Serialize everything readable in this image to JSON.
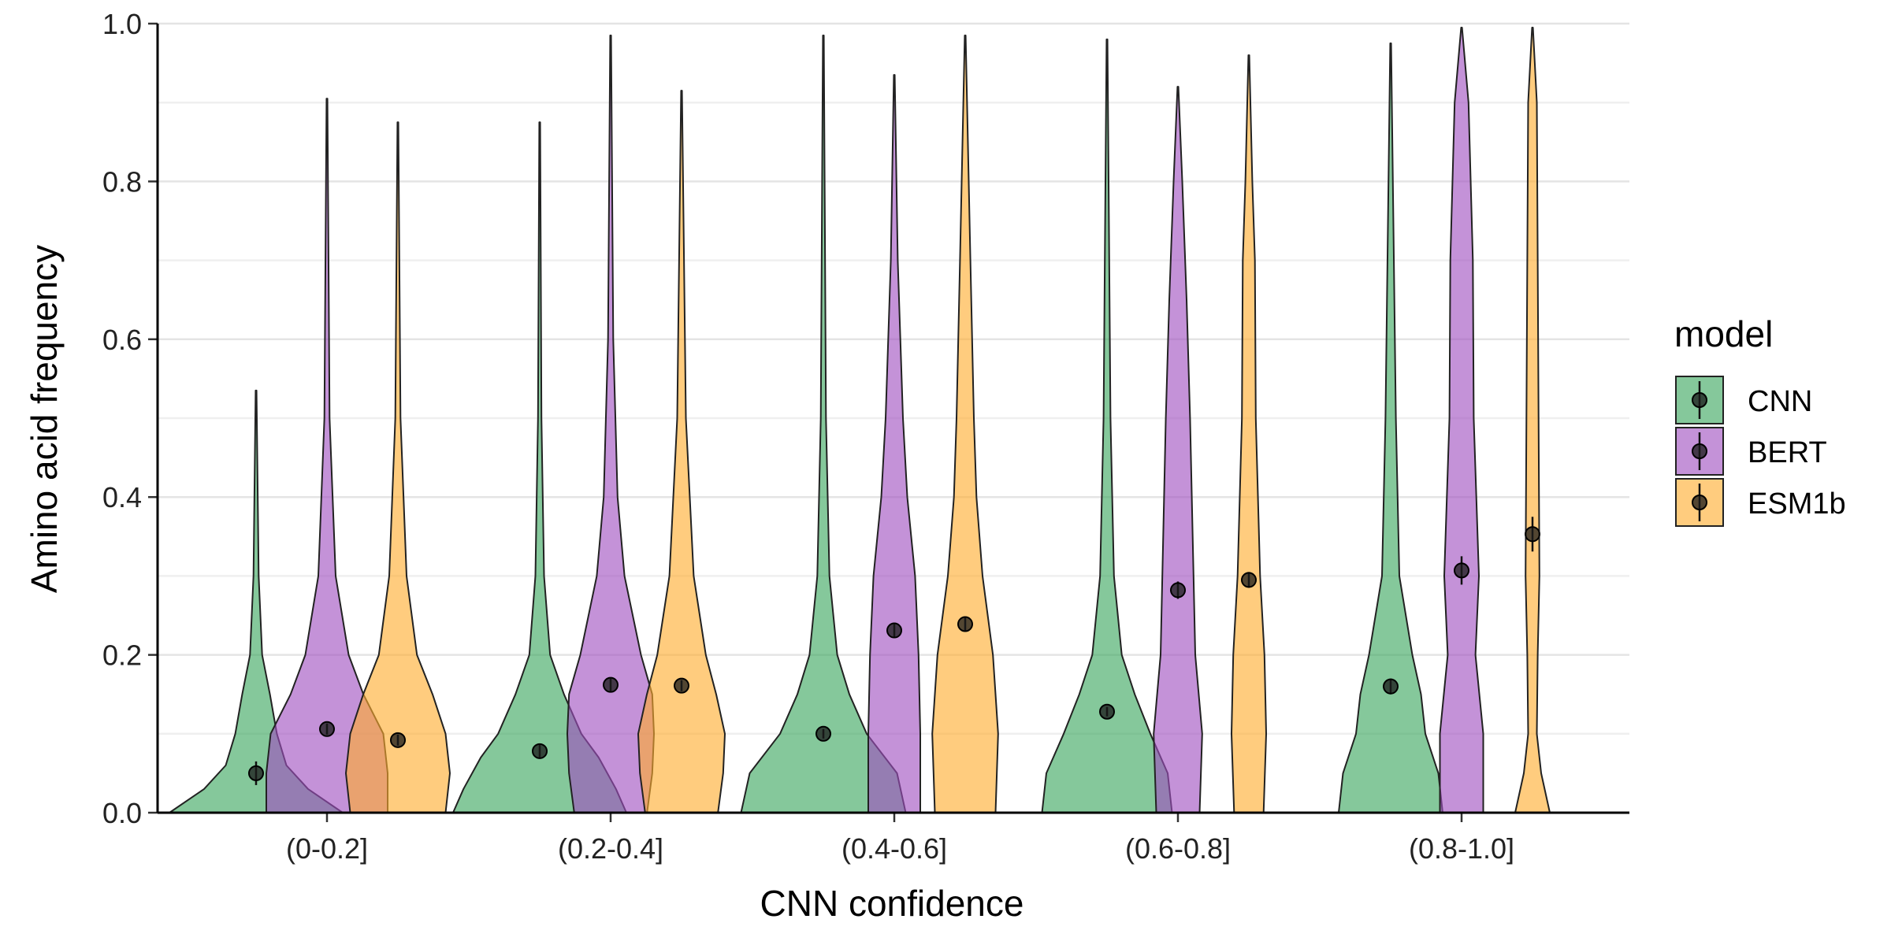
{
  "chart_data": {
    "type": "violin",
    "xlabel": "CNN confidence",
    "ylabel": "Amino acid frequency",
    "ylim": [
      0,
      1
    ],
    "yticks": [
      "0.0",
      "0.2",
      "0.4",
      "0.6",
      "0.8",
      "1.0"
    ],
    "grid": true,
    "legend": {
      "title": "model",
      "position": "right"
    },
    "categories": [
      "(0-0.2]",
      "(0.2-0.4]",
      "(0.4-0.6]",
      "(0.6-0.8]",
      "(0.8-1.0]"
    ],
    "series": [
      {
        "name": "CNN",
        "color": "#3aa75e",
        "means": [
          0.05,
          0.078,
          0.1,
          0.128,
          0.16
        ],
        "errors": [
          0.015,
          0.008,
          0.006,
          0.006,
          0.01
        ],
        "max": [
          0.535,
          0.875,
          0.985,
          0.98,
          0.975
        ],
        "widths": [
          [
            [
              0,
              1
            ],
            [
              0.03,
              0.6
            ],
            [
              0.06,
              0.35
            ],
            [
              0.1,
              0.24
            ],
            [
              0.15,
              0.16
            ],
            [
              0.2,
              0.07
            ],
            [
              0.3,
              0.03
            ],
            [
              0.535,
              0.005
            ]
          ],
          [
            [
              0,
              1
            ],
            [
              0.03,
              0.88
            ],
            [
              0.07,
              0.68
            ],
            [
              0.1,
              0.48
            ],
            [
              0.15,
              0.28
            ],
            [
              0.2,
              0.12
            ],
            [
              0.3,
              0.05
            ],
            [
              0.5,
              0.02
            ],
            [
              0.875,
              0.005
            ]
          ],
          [
            [
              0,
              0.95
            ],
            [
              0.05,
              0.85
            ],
            [
              0.1,
              0.5
            ],
            [
              0.15,
              0.3
            ],
            [
              0.2,
              0.16
            ],
            [
              0.3,
              0.07
            ],
            [
              0.5,
              0.03
            ],
            [
              0.985,
              0.005
            ]
          ],
          [
            [
              0,
              0.75
            ],
            [
              0.05,
              0.7
            ],
            [
              0.1,
              0.5
            ],
            [
              0.15,
              0.32
            ],
            [
              0.2,
              0.17
            ],
            [
              0.3,
              0.08
            ],
            [
              0.5,
              0.04
            ],
            [
              0.98,
              0.005
            ]
          ],
          [
            [
              0,
              0.6
            ],
            [
              0.05,
              0.55
            ],
            [
              0.1,
              0.4
            ],
            [
              0.15,
              0.35
            ],
            [
              0.2,
              0.25
            ],
            [
              0.3,
              0.1
            ],
            [
              0.5,
              0.06
            ],
            [
              0.975,
              0.005
            ]
          ]
        ]
      },
      {
        "name": "BERT",
        "color": "#a04fc0",
        "means": [
          0.106,
          0.162,
          0.231,
          0.282,
          0.307
        ],
        "errors": [
          0.007,
          0.008,
          0.008,
          0.011,
          0.018
        ],
        "max": [
          0.905,
          0.985,
          0.935,
          0.92,
          0.995
        ],
        "widths": [
          [
            [
              0,
              0.7
            ],
            [
              0.05,
              0.7
            ],
            [
              0.1,
              0.65
            ],
            [
              0.15,
              0.42
            ],
            [
              0.2,
              0.25
            ],
            [
              0.3,
              0.1
            ],
            [
              0.5,
              0.03
            ],
            [
              0.905,
              0.005
            ]
          ],
          [
            [
              0,
              0.42
            ],
            [
              0.05,
              0.48
            ],
            [
              0.1,
              0.5
            ],
            [
              0.15,
              0.48
            ],
            [
              0.2,
              0.35
            ],
            [
              0.3,
              0.16
            ],
            [
              0.4,
              0.08
            ],
            [
              0.6,
              0.03
            ],
            [
              0.985,
              0.005
            ]
          ],
          [
            [
              0,
              0.3
            ],
            [
              0.1,
              0.3
            ],
            [
              0.2,
              0.28
            ],
            [
              0.3,
              0.24
            ],
            [
              0.4,
              0.15
            ],
            [
              0.5,
              0.1
            ],
            [
              0.7,
              0.04
            ],
            [
              0.935,
              0.005
            ]
          ],
          [
            [
              0,
              0.25
            ],
            [
              0.1,
              0.28
            ],
            [
              0.2,
              0.2
            ],
            [
              0.3,
              0.18
            ],
            [
              0.5,
              0.14
            ],
            [
              0.65,
              0.1
            ],
            [
              0.8,
              0.05
            ],
            [
              0.92,
              0.005
            ]
          ],
          [
            [
              0,
              0.25
            ],
            [
              0.1,
              0.25
            ],
            [
              0.2,
              0.16
            ],
            [
              0.3,
              0.2
            ],
            [
              0.5,
              0.14
            ],
            [
              0.7,
              0.13
            ],
            [
              0.9,
              0.08
            ],
            [
              0.995,
              0.005
            ]
          ]
        ]
      },
      {
        "name": "ESM1b",
        "color": "#ffad2e",
        "means": [
          0.092,
          0.161,
          0.239,
          0.295,
          0.353
        ],
        "errors": [
          0.007,
          0.007,
          0.008,
          0.01,
          0.022
        ],
        "max": [
          0.875,
          0.915,
          0.985,
          0.96,
          0.995
        ],
        "widths": [
          [
            [
              0,
              0.55
            ],
            [
              0.05,
              0.6
            ],
            [
              0.1,
              0.55
            ],
            [
              0.15,
              0.4
            ],
            [
              0.2,
              0.22
            ],
            [
              0.3,
              0.1
            ],
            [
              0.5,
              0.03
            ],
            [
              0.875,
              0.005
            ]
          ],
          [
            [
              0,
              0.42
            ],
            [
              0.05,
              0.48
            ],
            [
              0.1,
              0.5
            ],
            [
              0.15,
              0.4
            ],
            [
              0.2,
              0.28
            ],
            [
              0.3,
              0.14
            ],
            [
              0.5,
              0.05
            ],
            [
              0.915,
              0.005
            ]
          ],
          [
            [
              0,
              0.35
            ],
            [
              0.1,
              0.38
            ],
            [
              0.2,
              0.32
            ],
            [
              0.3,
              0.2
            ],
            [
              0.4,
              0.13
            ],
            [
              0.5,
              0.1
            ],
            [
              0.7,
              0.06
            ],
            [
              0.985,
              0.005
            ]
          ],
          [
            [
              0,
              0.17
            ],
            [
              0.1,
              0.2
            ],
            [
              0.2,
              0.18
            ],
            [
              0.3,
              0.13
            ],
            [
              0.5,
              0.08
            ],
            [
              0.7,
              0.07
            ],
            [
              0.8,
              0.04
            ],
            [
              0.96,
              0.005
            ]
          ],
          [
            [
              0,
              0.2
            ],
            [
              0.05,
              0.1
            ],
            [
              0.1,
              0.05
            ],
            [
              0.2,
              0.06
            ],
            [
              0.3,
              0.08
            ],
            [
              0.5,
              0.07
            ],
            [
              0.7,
              0.06
            ],
            [
              0.9,
              0.05
            ],
            [
              0.995,
              0.005
            ]
          ]
        ]
      }
    ]
  }
}
